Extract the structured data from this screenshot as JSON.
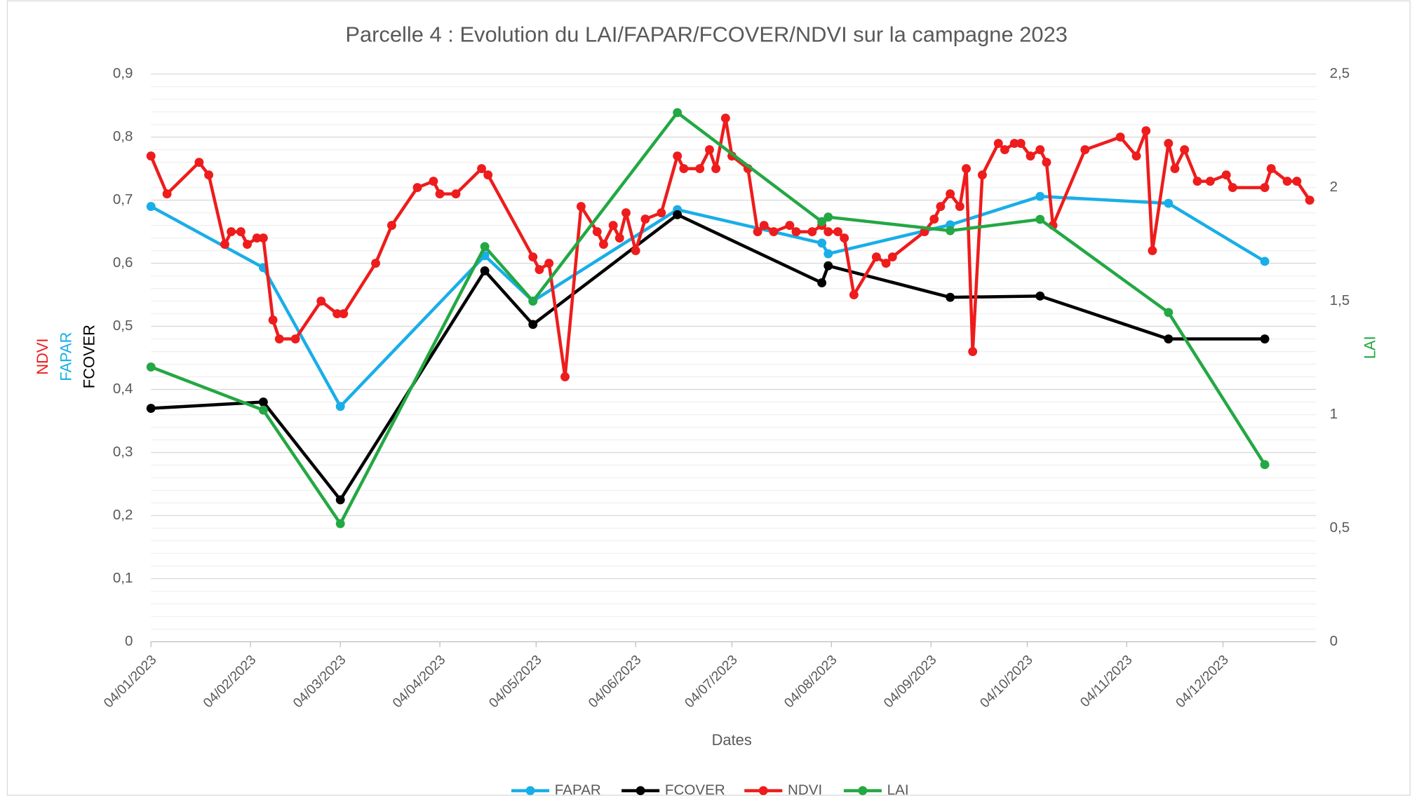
{
  "chart_data": {
    "type": "line",
    "title": "Parcelle 4 : Evolution du LAI/FAPAR/FCOVER/NDVI sur la campagne 2023",
    "xlabel": "Dates",
    "ylabels": [
      {
        "text": "NDVI",
        "color": "#ee1c1c"
      },
      {
        "text": "FAPAR",
        "color": "#19aee8"
      },
      {
        "text": "FCOVER",
        "color": "#000000"
      }
    ],
    "y2label": "LAI",
    "y2label_color": "#23a843",
    "xlim": [
      "2023-01-04",
      "2024-01-02"
    ],
    "xticks": [
      {
        "value": "2023-01-04",
        "label": "04/01/2023"
      },
      {
        "value": "2023-02-04",
        "label": "04/02/2023"
      },
      {
        "value": "2023-03-04",
        "label": "04/03/2023"
      },
      {
        "value": "2023-04-04",
        "label": "04/04/2023"
      },
      {
        "value": "2023-05-04",
        "label": "04/05/2023"
      },
      {
        "value": "2023-06-04",
        "label": "04/06/2023"
      },
      {
        "value": "2023-07-04",
        "label": "04/07/2023"
      },
      {
        "value": "2023-08-04",
        "label": "04/08/2023"
      },
      {
        "value": "2023-09-04",
        "label": "04/09/2023"
      },
      {
        "value": "2023-10-04",
        "label": "04/10/2023"
      },
      {
        "value": "2023-11-04",
        "label": "04/11/2023"
      },
      {
        "value": "2023-12-04",
        "label": "04/12/2023"
      }
    ],
    "ylim": [
      0,
      0.9
    ],
    "yticks": [
      0,
      {
        "value": 0.1,
        "label": "0,1"
      },
      {
        "value": 0.2,
        "label": "0,2"
      },
      {
        "value": 0.3,
        "label": "0,3"
      },
      {
        "value": 0.4,
        "label": "0,4"
      },
      {
        "value": 0.5,
        "label": "0,5"
      },
      {
        "value": 0.6,
        "label": "0,6"
      },
      {
        "value": 0.7,
        "label": "0,7"
      },
      {
        "value": 0.8,
        "label": "0,8"
      },
      {
        "value": 0.9,
        "label": "0,9"
      }
    ],
    "y2lim": [
      0,
      2.5
    ],
    "y2ticks": [
      0,
      {
        "value": 0.5,
        "label": "0,5"
      },
      1,
      {
        "value": 1.5,
        "label": "1,5"
      },
      2,
      {
        "value": 2.5,
        "label": "2,5"
      }
    ],
    "grid": true,
    "minor_grid": true,
    "legend": "bottom",
    "series": [
      {
        "name": "FAPAR",
        "color": "#19aee8",
        "x": [
          "2023-01-04",
          "2023-02-08",
          "2023-03-04",
          "2023-04-18",
          "2023-05-03",
          "2023-06-17",
          "2023-08-01",
          "2023-08-03",
          "2023-09-10",
          "2023-10-08",
          "2023-11-17",
          "2023-12-17"
        ],
        "values": [
          0.69,
          0.593,
          0.373,
          0.612,
          0.54,
          0.685,
          0.632,
          0.615,
          0.661,
          0.706,
          0.695,
          0.603
        ]
      },
      {
        "name": "FCOVER",
        "color": "#000000",
        "x": [
          "2023-01-04",
          "2023-02-08",
          "2023-03-04",
          "2023-04-18",
          "2023-05-03",
          "2023-06-17",
          "2023-08-01",
          "2023-08-03",
          "2023-09-10",
          "2023-10-08",
          "2023-11-17",
          "2023-12-17"
        ],
        "values": [
          0.37,
          0.38,
          0.225,
          0.588,
          0.503,
          0.677,
          0.569,
          0.596,
          0.546,
          0.548,
          0.48,
          0.48
        ]
      },
      {
        "name": "NDVI",
        "color": "#ee1c1c",
        "x": [
          "2023-01-04",
          "2023-01-09",
          "2023-01-19",
          "2023-01-22",
          "2023-01-27",
          "2023-01-29",
          "2023-02-01",
          "2023-02-03",
          "2023-02-06",
          "2023-02-08",
          "2023-02-11",
          "2023-02-13",
          "2023-02-18",
          "2023-02-26",
          "2023-03-03",
          "2023-03-05",
          "2023-03-15",
          "2023-03-20",
          "2023-03-28",
          "2023-04-02",
          "2023-04-04",
          "2023-04-09",
          "2023-04-17",
          "2023-04-19",
          "2023-05-03",
          "2023-05-05",
          "2023-05-08",
          "2023-05-13",
          "2023-05-18",
          "2023-05-23",
          "2023-05-25",
          "2023-05-28",
          "2023-05-30",
          "2023-06-01",
          "2023-06-04",
          "2023-06-07",
          "2023-06-12",
          "2023-06-17",
          "2023-06-19",
          "2023-06-24",
          "2023-06-27",
          "2023-06-29",
          "2023-07-02",
          "2023-07-04",
          "2023-07-09",
          "2023-07-12",
          "2023-07-14",
          "2023-07-17",
          "2023-07-22",
          "2023-07-24",
          "2023-07-29",
          "2023-08-01",
          "2023-08-03",
          "2023-08-06",
          "2023-08-08",
          "2023-08-11",
          "2023-08-18",
          "2023-08-21",
          "2023-08-23",
          "2023-09-02",
          "2023-09-05",
          "2023-09-07",
          "2023-09-10",
          "2023-09-13",
          "2023-09-15",
          "2023-09-17",
          "2023-09-20",
          "2023-09-25",
          "2023-09-27",
          "2023-09-30",
          "2023-10-02",
          "2023-10-05",
          "2023-10-08",
          "2023-10-10",
          "2023-10-12",
          "2023-10-22",
          "2023-11-02",
          "2023-11-07",
          "2023-11-10",
          "2023-11-12",
          "2023-11-17",
          "2023-11-19",
          "2023-11-22",
          "2023-11-26",
          "2023-11-30",
          "2023-12-05",
          "2023-12-07",
          "2023-12-17",
          "2023-12-19",
          "2023-12-24",
          "2023-12-27",
          "2023-12-31"
        ],
        "values": [
          0.77,
          0.71,
          0.76,
          0.74,
          0.63,
          0.65,
          0.65,
          0.63,
          0.64,
          0.64,
          0.51,
          0.48,
          0.48,
          0.54,
          0.52,
          0.52,
          0.6,
          0.66,
          0.72,
          0.73,
          0.71,
          0.71,
          0.75,
          0.74,
          0.61,
          0.59,
          0.6,
          0.42,
          0.69,
          0.65,
          0.63,
          0.66,
          0.64,
          0.68,
          0.62,
          0.67,
          0.68,
          0.77,
          0.75,
          0.75,
          0.78,
          0.75,
          0.83,
          0.77,
          0.75,
          0.65,
          0.66,
          0.65,
          0.66,
          0.65,
          0.65,
          0.66,
          0.65,
          0.65,
          0.64,
          0.55,
          0.61,
          0.6,
          0.61,
          0.65,
          0.67,
          0.69,
          0.71,
          0.69,
          0.75,
          0.46,
          0.74,
          0.79,
          0.78,
          0.79,
          0.79,
          0.77,
          0.78,
          0.76,
          0.66,
          0.78,
          0.8,
          0.77,
          0.81,
          0.62,
          0.79,
          0.75,
          0.78,
          0.73,
          0.73,
          0.74,
          0.72,
          0.72,
          0.75,
          0.73,
          0.73,
          0.7
        ]
      },
      {
        "name": "LAI",
        "color": "#23a843",
        "axis": "y2",
        "x": [
          "2023-01-04",
          "2023-02-08",
          "2023-03-04",
          "2023-04-18",
          "2023-05-03",
          "2023-06-17",
          "2023-08-01",
          "2023-08-03",
          "2023-09-10",
          "2023-10-08",
          "2023-11-17",
          "2023-12-17"
        ],
        "values": [
          1.21,
          1.02,
          0.52,
          1.74,
          1.5,
          2.33,
          1.85,
          1.87,
          1.81,
          1.86,
          1.45,
          0.78
        ]
      }
    ]
  }
}
